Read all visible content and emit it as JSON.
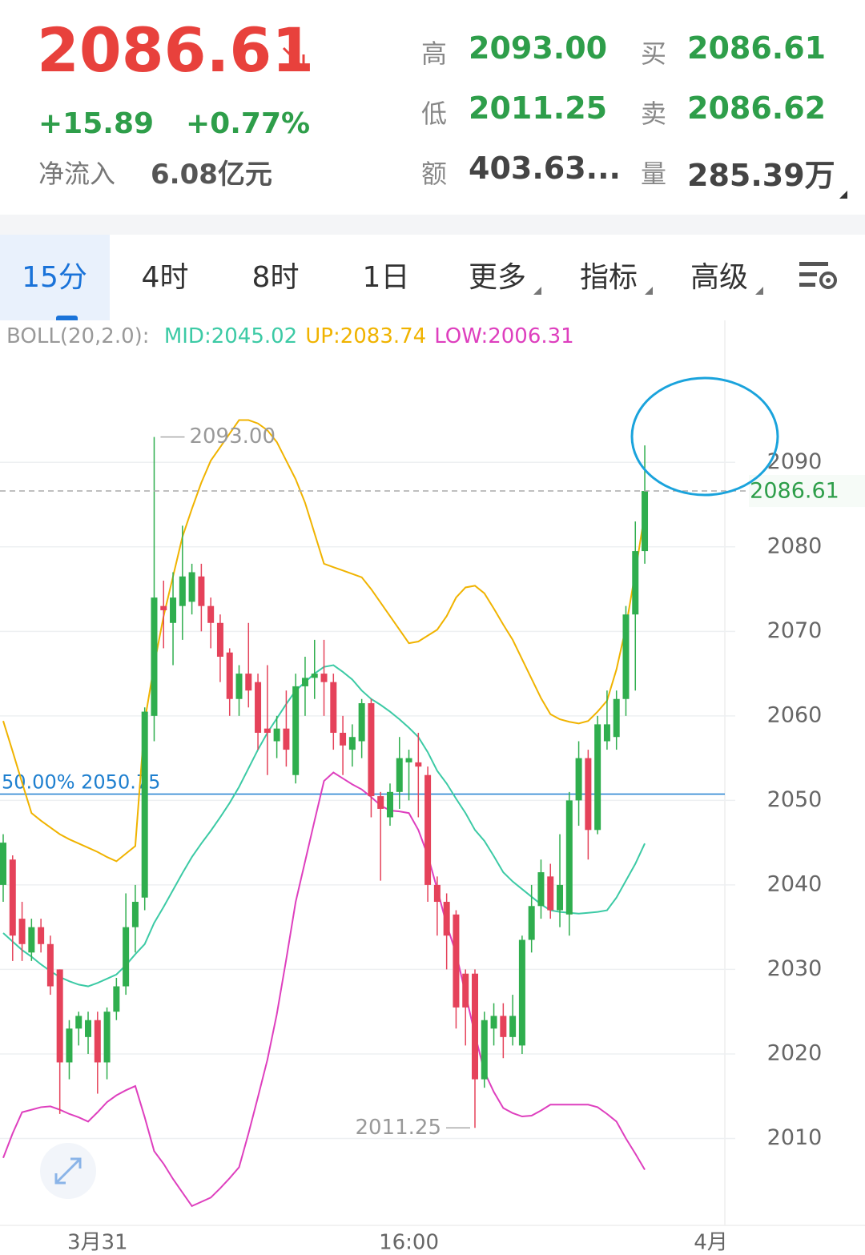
{
  "header": {
    "price": "2086.61",
    "change": "+15.89",
    "change_pct": "+0.77%",
    "net_inflow_label": "净流入",
    "net_inflow": "6.08亿元",
    "stats": [
      {
        "label": "高",
        "value": "2093.00"
      },
      {
        "label": "买",
        "value": "2086.61"
      },
      {
        "label": "低",
        "value": "2011.25"
      },
      {
        "label": "卖",
        "value": "2086.62"
      },
      {
        "label": "额",
        "value": "403.63..."
      },
      {
        "label": "量",
        "value": "285.39万"
      }
    ]
  },
  "tabs": [
    "15分",
    "4时",
    "8时",
    "1日",
    "更多",
    "指标",
    "高级"
  ],
  "chart_data": {
    "type": "candlestick",
    "indicator": "BOLL(20,2.0):",
    "categories": [
      null,
      null,
      null,
      null,
      null,
      null,
      null,
      null,
      null,
      null,
      "3月31",
      null,
      null,
      null,
      null,
      null,
      null,
      null,
      null,
      null,
      null,
      null,
      null,
      null,
      null,
      null,
      null,
      null,
      null,
      null,
      null,
      null,
      null,
      null,
      null,
      null,
      null,
      null,
      null,
      null,
      null,
      null,
      null,
      "16:00",
      null,
      null,
      null,
      null,
      null,
      null,
      null,
      null,
      null,
      null,
      null,
      null,
      null,
      null,
      null,
      null,
      null,
      null,
      null,
      null,
      null,
      null,
      null,
      null,
      null,
      null,
      null,
      null,
      null,
      null,
      null,
      "4月"
    ],
    "open": [
      2040,
      2043,
      2036,
      2032,
      2035,
      2033,
      2030,
      2019,
      2023,
      2022,
      2024,
      2019,
      2025,
      2028,
      2035,
      2038.5,
      2060,
      2073,
      2071,
      2073,
      2073.5,
      2076.5,
      2073,
      2071,
      2067.5,
      2062,
      2065,
      2064,
      2058.5,
      2057,
      2058.5,
      2053,
      2063.5,
      2064.5,
      2065,
      2064,
      2058,
      2056,
      2057,
      2061.5,
      2050.5,
      2048,
      2051,
      2054.5,
      2054.5,
      2053,
      2040,
      2038,
      2036.5,
      2029.5,
      2029.5,
      2017,
      2023,
      2024.5,
      2022,
      2021,
      2033.5,
      2037.5,
      2041,
      2037,
      2036.5,
      2050,
      2055,
      2046.5,
      2057,
      2057.5,
      2062,
      2072,
      2079.5,
      null,
      null,
      null,
      null,
      null,
      null,
      null
    ],
    "high": [
      2046,
      2043.5,
      2038,
      2036,
      2036,
      2034,
      2030,
      2024,
      2025,
      2025,
      2025,
      2025.5,
      2029,
      2039,
      2040,
      2061,
      2093,
      2076,
      2077,
      2082.5,
      2078,
      2078,
      2074,
      2072,
      2068,
      2066,
      2071,
      2065,
      2066,
      2060,
      2063,
      2065,
      2067,
      2069,
      2069,
      2065,
      2060,
      2059,
      2062,
      2062,
      2051,
      2052,
      2057.5,
      2056,
      2058,
      2054,
      2041,
      2039,
      2037,
      2030,
      2030,
      2025,
      2026,
      2026,
      2027,
      2034,
      2040,
      2043,
      2042.5,
      2046,
      2051,
      2057,
      2056,
      2060,
      2063,
      2063,
      2073,
      2083,
      2092,
      null,
      null,
      null,
      null,
      null,
      null,
      null
    ],
    "low": [
      2038,
      2031,
      2031,
      2031,
      2032,
      2027,
      2012.9,
      2017,
      2021,
      2020,
      2015.3,
      2017,
      2024,
      2027,
      2032,
      2037,
      2057,
      2068,
      2066,
      2069,
      2072,
      2070,
      2068,
      2064,
      2060,
      2060,
      2061,
      2056,
      2053,
      2055,
      2054,
      2052,
      2060,
      2062,
      2060,
      2056,
      2053,
      2054,
      2055,
      2048,
      2040.5,
      2047,
      2049,
      2050,
      2048,
      2038,
      2034,
      2030,
      2023,
      2021,
      2011.25,
      2016,
      2021,
      2019.5,
      2021,
      2020,
      2032,
      2036,
      2036,
      2035,
      2034,
      2047,
      2043,
      2046,
      2056,
      2056,
      2060,
      2063,
      2078,
      null,
      null,
      null,
      null,
      null,
      null,
      null
    ],
    "close": [
      2045,
      2034,
      2033,
      2035,
      2033,
      2028,
      2019,
      2023,
      2024.5,
      2024,
      2019,
      2025,
      2028,
      2035,
      2038,
      2060.5,
      2074,
      2072.5,
      2074,
      2076.5,
      2077,
      2073,
      2071,
      2067,
      2062,
      2065,
      2063,
      2058,
      2058,
      2058.5,
      2056,
      2063.5,
      2064.5,
      2065,
      2064,
      2058,
      2056.5,
      2057.5,
      2061.5,
      2050.5,
      2049,
      2051,
      2055,
      2055,
      2054,
      2040,
      2038,
      2034,
      2025.5,
      2025.5,
      2017,
      2024,
      2024.5,
      2022,
      2024.5,
      2033.5,
      2037.5,
      2041.5,
      2037,
      2040,
      2050,
      2055,
      2046.5,
      2059,
      2059,
      2062,
      2072,
      2079.5,
      2086.61,
      null,
      null,
      null,
      null,
      null,
      null,
      null
    ],
    "up_color": "#2fae4e",
    "down_color": "#e5425a",
    "series": [
      {
        "label": "MID:2045.02",
        "color": "#3ccaa5",
        "values": [
          2034.3,
          2033.3,
          2032.3,
          2031.5,
          2030.6,
          2029.8,
          2029.1,
          2028.6,
          2028.2,
          2028,
          2028.4,
          2028.9,
          2029.4,
          2030.5,
          2031.8,
          2033,
          2035.5,
          2037.4,
          2039.4,
          2041.4,
          2043.3,
          2044.9,
          2046.4,
          2048,
          2049.7,
          2051.6,
          2053.8,
          2056,
          2058,
          2059.7,
          2061.4,
          2063,
          2064,
          2065,
          2065.8,
          2066,
          2065.2,
          2064.3,
          2063,
          2062,
          2061.3,
          2060.5,
          2059.6,
          2058.6,
          2057.5,
          2055.7,
          2053.5,
          2052,
          2050.2,
          2048.5,
          2046.5,
          2045.2,
          2043.4,
          2041.5,
          2040.4,
          2039.5,
          2038.6,
          2037.7,
          2037,
          2036.8,
          2036.7,
          2036.6,
          2036.7,
          2036.8,
          2037,
          2038.5,
          2040.5,
          2042.5,
          2044.9,
          null,
          null,
          null,
          null,
          null,
          null,
          null
        ]
      },
      {
        "label": "UP:2083.74",
        "color": "#f0b300",
        "values": [
          2059.4,
          2055.8,
          2052.1,
          2048.5,
          2047.6,
          2046.8,
          2046,
          2045.4,
          2044.9,
          2044.4,
          2043.9,
          2043.3,
          2042.8,
          2043.7,
          2044.6,
          2059.4,
          2066,
          2071.8,
          2076.5,
          2081.2,
          2084.5,
          2087.6,
          2090.2,
          2091.8,
          2093.4,
          2095,
          2095,
          2094.6,
          2093.8,
          2092.4,
          2090.2,
          2088,
          2085.2,
          2081.6,
          2078,
          2077.6,
          2077.2,
          2076.8,
          2076.4,
          2075,
          2073.4,
          2071.8,
          2070.2,
          2068.6,
          2068.8,
          2069.5,
          2070.2,
          2071.8,
          2074,
          2075.2,
          2075.4,
          2074.5,
          2072.7,
          2070.8,
          2069,
          2066.7,
          2064.4,
          2062.1,
          2060.2,
          2059.6,
          2059.3,
          2059.1,
          2059.4,
          2060.5,
          2061.8,
          2065.5,
          2070.5,
          2077,
          2084,
          null,
          null,
          null,
          null,
          null,
          null,
          null
        ]
      },
      {
        "label": "LOW:2006.31",
        "color": "#de3fbe",
        "values": [
          2007.7,
          2010.6,
          2013.1,
          2013.4,
          2013.7,
          2013.8,
          2013.4,
          2012.9,
          2012.5,
          2012,
          2013.1,
          2014.3,
          2015.1,
          2015.7,
          2016.2,
          2012.5,
          2008.5,
          2007,
          2005.2,
          2003.6,
          2002,
          2002.5,
          2003,
          2004.1,
          2005.3,
          2006.6,
          2010.6,
          2014.9,
          2019.3,
          2024.7,
          2031.2,
          2038,
          2042.8,
          2047.6,
          2052.3,
          2053.3,
          2052.6,
          2051.9,
          2051.3,
          2050.4,
          2049.4,
          2048.8,
          2048.7,
          2048.5,
          2046.5,
          2043.5,
          2039.5,
          2035.3,
          2031.9,
          2027.1,
          2022.3,
          2017.9,
          2015.5,
          2013.6,
          2013,
          2012.6,
          2012.7,
          2013.3,
          2014,
          2014,
          2014,
          2014,
          2014,
          2013.7,
          2012.9,
          2012,
          2010,
          2008.2,
          2006.3,
          null,
          null,
          null,
          null,
          null,
          null,
          null
        ]
      }
    ],
    "ylim": [
      2000,
      2106.8
    ],
    "yticks": [
      2010,
      2020,
      2030,
      2040,
      2050,
      2060,
      2070,
      2080,
      2090
    ],
    "grid": true,
    "fib_line": {
      "value": 2050.75,
      "label": "50.00% 2050.75",
      "color": "#1e7fcf"
    },
    "last_price": {
      "label": "2086.61",
      "color": "#2e9e4a"
    },
    "max_label": "2093.00",
    "min_label": "2011.25"
  }
}
